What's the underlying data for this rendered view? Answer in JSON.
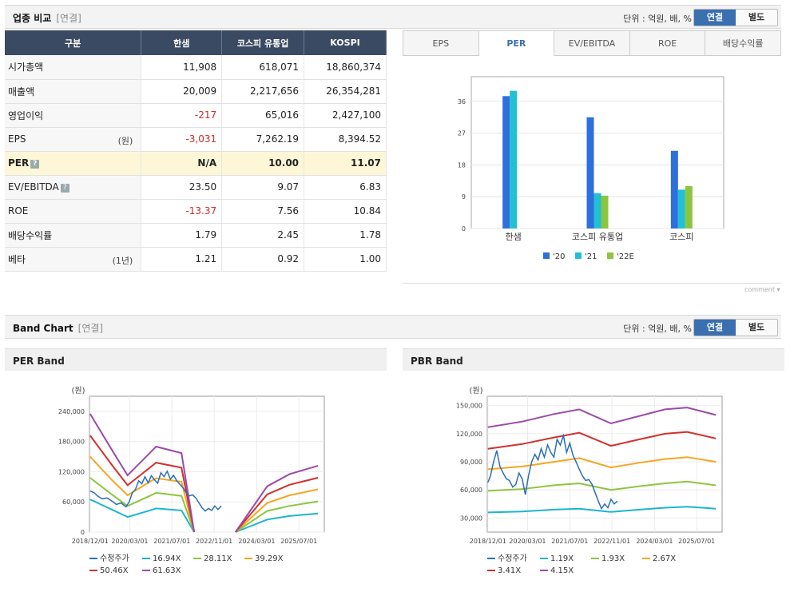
{
  "top": {
    "title": "업종 비교",
    "subtitle": "[연결]",
    "unit": "단위 : 억원, 배, %",
    "toggle_on": "연결",
    "toggle_off": "별도"
  },
  "table": {
    "headers": [
      "구분",
      "한샘",
      "코스피 유통업",
      "KOSPI"
    ],
    "rows": [
      {
        "label": "시가총액",
        "extra": "",
        "v": [
          "11,908",
          "618,071",
          "18,860,374"
        ],
        "neg": [
          false,
          false,
          false
        ]
      },
      {
        "label": "매출액",
        "extra": "",
        "v": [
          "20,009",
          "2,217,656",
          "26,354,281"
        ],
        "neg": [
          false,
          false,
          false
        ]
      },
      {
        "label": "영업이익",
        "extra": "",
        "v": [
          "-217",
          "65,016",
          "2,427,100"
        ],
        "neg": [
          true,
          false,
          false
        ]
      },
      {
        "label": "EPS",
        "extra": "(원)",
        "v": [
          "-3,031",
          "7,262.19",
          "8,394.52"
        ],
        "neg": [
          true,
          false,
          false
        ]
      },
      {
        "label": "PER",
        "extra": "",
        "q": true,
        "hl": true,
        "v": [
          "N/A",
          "10.00",
          "11.07"
        ],
        "neg": [
          false,
          false,
          false
        ]
      },
      {
        "label": "EV/EBITDA",
        "extra": "",
        "q": true,
        "v": [
          "23.50",
          "9.07",
          "6.83"
        ],
        "neg": [
          false,
          false,
          false
        ]
      },
      {
        "label": "ROE",
        "extra": "",
        "v": [
          "-13.37",
          "7.56",
          "10.84"
        ],
        "neg": [
          true,
          false,
          false
        ]
      },
      {
        "label": "배당수익률",
        "extra": "",
        "v": [
          "1.79",
          "2.45",
          "1.78"
        ],
        "neg": [
          false,
          false,
          false
        ]
      },
      {
        "label": "베타",
        "extra": "(1년)",
        "v": [
          "1.21",
          "0.92",
          "1.00"
        ],
        "neg": [
          false,
          false,
          false
        ]
      }
    ]
  },
  "tabs": [
    "EPS",
    "PER",
    "EV/EBITDA",
    "ROE",
    "배당수익률"
  ],
  "active_tab": "PER",
  "comment": "comment",
  "band": {
    "title": "Band Chart",
    "subtitle": "[연결]",
    "unit": "단위 : 억원, 배, %",
    "toggle_on": "연결",
    "toggle_off": "별도"
  },
  "chart_data": [
    {
      "type": "bar",
      "categories": [
        "한샘",
        "코스피 유통업",
        "코스피"
      ],
      "series": [
        {
          "name": "'20",
          "color": "#2e6fdc",
          "values": [
            37.5,
            31.5,
            22.0
          ]
        },
        {
          "name": "'21",
          "color": "#21c0d4",
          "values": [
            39.0,
            10.0,
            11.0
          ]
        },
        {
          "name": "'22E",
          "color": "#8cc63f",
          "values": [
            null,
            9.3,
            12.0
          ]
        }
      ],
      "yticks": [
        0,
        9,
        18,
        27,
        36
      ],
      "ylim": [
        0,
        43
      ]
    },
    {
      "type": "line",
      "title": "PER Band",
      "ylabel": "(원)",
      "xticks": [
        "2018/12/01",
        "2020/03/01",
        "2021/07/01",
        "2022/11/01",
        "2024/03/01",
        "2025/07/01"
      ],
      "yticks": [
        "0",
        "60,000",
        "120,000",
        "180,000",
        "240,000"
      ],
      "ylim": [
        0,
        270000
      ],
      "xlim": [
        2018.9,
        2026.3
      ],
      "legend": [
        {
          "name": "수정주가",
          "color": "#2a6fb5"
        },
        {
          "name": "16.94X",
          "color": "#1cb5cf"
        },
        {
          "name": "28.11X",
          "color": "#8cc63f"
        },
        {
          "name": "39.29X",
          "color": "#f5a623"
        },
        {
          "name": "50.46X",
          "color": "#d0312d"
        },
        {
          "name": "61.63X",
          "color": "#9b4aa8"
        }
      ],
      "bands": [
        {
          "color": "#1cb5cf",
          "pts": [
            [
              2018.92,
              65000
            ],
            [
              2019.6,
              45000
            ],
            [
              2020.1,
              30000
            ],
            [
              2020.8,
              43000
            ],
            [
              2021.0,
              47000
            ],
            [
              2021.8,
              43000
            ],
            [
              2022.2,
              0
            ]
          ],
          "pts2": [
            [
              2023.5,
              0
            ],
            [
              2024.5,
              25000
            ],
            [
              2025.2,
              32000
            ],
            [
              2026.1,
              37000
            ]
          ]
        },
        {
          "color": "#8cc63f",
          "pts": [
            [
              2018.92,
              108000
            ],
            [
              2019.6,
              75000
            ],
            [
              2020.1,
              52000
            ],
            [
              2020.8,
              72000
            ],
            [
              2021.0,
              78000
            ],
            [
              2021.8,
              72000
            ],
            [
              2022.2,
              0
            ]
          ],
          "pts2": [
            [
              2023.5,
              0
            ],
            [
              2024.5,
              42000
            ],
            [
              2025.2,
              52000
            ],
            [
              2026.1,
              61000
            ]
          ]
        },
        {
          "color": "#f5a623",
          "pts": [
            [
              2018.92,
              150000
            ],
            [
              2019.6,
              104000
            ],
            [
              2020.1,
              73000
            ],
            [
              2020.8,
              100000
            ],
            [
              2021.0,
              107000
            ],
            [
              2021.8,
              100000
            ],
            [
              2022.2,
              0
            ]
          ],
          "pts2": [
            [
              2023.5,
              0
            ],
            [
              2024.5,
              58000
            ],
            [
              2025.2,
              73000
            ],
            [
              2026.1,
              85000
            ]
          ]
        },
        {
          "color": "#d0312d",
          "pts": [
            [
              2018.92,
              192000
            ],
            [
              2019.6,
              134000
            ],
            [
              2020.1,
              93000
            ],
            [
              2020.8,
              128000
            ],
            [
              2021.0,
              138000
            ],
            [
              2021.8,
              128000
            ],
            [
              2022.2,
              0
            ]
          ],
          "pts2": [
            [
              2023.5,
              0
            ],
            [
              2024.5,
              75000
            ],
            [
              2025.2,
              94000
            ],
            [
              2026.1,
              108000
            ]
          ]
        },
        {
          "color": "#9b4aa8",
          "pts": [
            [
              2018.92,
              235000
            ],
            [
              2019.6,
              164000
            ],
            [
              2020.1,
              113000
            ],
            [
              2020.8,
              157000
            ],
            [
              2021.0,
              170000
            ],
            [
              2021.8,
              157000
            ],
            [
              2022.2,
              0
            ]
          ],
          "pts2": [
            [
              2023.5,
              0
            ],
            [
              2024.5,
              91000
            ],
            [
              2025.2,
              115000
            ],
            [
              2026.1,
              132000
            ]
          ]
        }
      ],
      "price": [
        [
          2018.92,
          82000
        ],
        [
          2019.05,
          78000
        ],
        [
          2019.15,
          72000
        ],
        [
          2019.3,
          66000
        ],
        [
          2019.45,
          68000
        ],
        [
          2019.6,
          62000
        ],
        [
          2019.75,
          55000
        ],
        [
          2019.9,
          58000
        ],
        [
          2020.05,
          50000
        ],
        [
          2020.15,
          60000
        ],
        [
          2020.25,
          78000
        ],
        [
          2020.35,
          85000
        ],
        [
          2020.45,
          102000
        ],
        [
          2020.55,
          96000
        ],
        [
          2020.65,
          110000
        ],
        [
          2020.75,
          98000
        ],
        [
          2020.85,
          112000
        ],
        [
          2020.95,
          104000
        ],
        [
          2021.05,
          97000
        ],
        [
          2021.15,
          118000
        ],
        [
          2021.25,
          110000
        ],
        [
          2021.35,
          121000
        ],
        [
          2021.45,
          105000
        ],
        [
          2021.55,
          113000
        ],
        [
          2021.65,
          102000
        ],
        [
          2021.75,
          95000
        ],
        [
          2021.85,
          88000
        ],
        [
          2021.95,
          78000
        ],
        [
          2022.05,
          72000
        ],
        [
          2022.15,
          74000
        ],
        [
          2022.25,
          68000
        ],
        [
          2022.35,
          58000
        ],
        [
          2022.45,
          48000
        ],
        [
          2022.55,
          42000
        ],
        [
          2022.65,
          47000
        ],
        [
          2022.75,
          43000
        ],
        [
          2022.85,
          52000
        ],
        [
          2022.95,
          45000
        ],
        [
          2023.05,
          52000
        ]
      ]
    },
    {
      "type": "line",
      "title": "PBR Band",
      "ylabel": "(원)",
      "xticks": [
        "2018/12/01",
        "2020/03/01",
        "2021/07/01",
        "2022/11/01",
        "2024/03/01",
        "2025/07/01"
      ],
      "yticks": [
        "30,000",
        "60,000",
        "90,000",
        "120,000",
        "150,000"
      ],
      "ylim": [
        15000,
        160000
      ],
      "xlim": [
        2018.9,
        2026.3
      ],
      "legend": [
        {
          "name": "수정주가",
          "color": "#2a6fb5"
        },
        {
          "name": "1.19X",
          "color": "#1cb5cf"
        },
        {
          "name": "1.93X",
          "color": "#8cc63f"
        },
        {
          "name": "2.67X",
          "color": "#f5a623"
        },
        {
          "name": "3.41X",
          "color": "#d0312d"
        },
        {
          "name": "4.15X",
          "color": "#9b4aa8"
        }
      ],
      "bands": [
        {
          "color": "#1cb5cf",
          "pts": [
            [
              2018.92,
              36000
            ],
            [
              2020.0,
              37000
            ],
            [
              2021.0,
              39000
            ],
            [
              2021.8,
              40000
            ],
            [
              2022.8,
              36500
            ],
            [
              2023.7,
              39000
            ],
            [
              2024.5,
              41000
            ],
            [
              2025.2,
              42000
            ],
            [
              2026.1,
              40000
            ]
          ]
        },
        {
          "color": "#8cc63f",
          "pts": [
            [
              2018.92,
              59000
            ],
            [
              2020.0,
              61000
            ],
            [
              2021.0,
              65000
            ],
            [
              2021.8,
              67000
            ],
            [
              2022.8,
              60000
            ],
            [
              2023.7,
              64000
            ],
            [
              2024.5,
              67000
            ],
            [
              2025.2,
              69000
            ],
            [
              2026.1,
              65000
            ]
          ]
        },
        {
          "color": "#f5a623",
          "pts": [
            [
              2018.92,
              82000
            ],
            [
              2020.0,
              85000
            ],
            [
              2021.0,
              90000
            ],
            [
              2021.8,
              94000
            ],
            [
              2022.8,
              84000
            ],
            [
              2023.7,
              89000
            ],
            [
              2024.5,
              93000
            ],
            [
              2025.2,
              95000
            ],
            [
              2026.1,
              90000
            ]
          ]
        },
        {
          "color": "#d0312d",
          "pts": [
            [
              2018.92,
              104000
            ],
            [
              2020.0,
              109000
            ],
            [
              2021.0,
              116000
            ],
            [
              2021.8,
              121000
            ],
            [
              2022.8,
              107000
            ],
            [
              2023.7,
              114000
            ],
            [
              2024.5,
              120000
            ],
            [
              2025.2,
              122000
            ],
            [
              2026.1,
              115000
            ]
          ]
        },
        {
          "color": "#9b4aa8",
          "pts": [
            [
              2018.92,
              127000
            ],
            [
              2020.0,
              133000
            ],
            [
              2021.0,
              141000
            ],
            [
              2021.8,
              146000
            ],
            [
              2022.8,
              131000
            ],
            [
              2023.7,
              139000
            ],
            [
              2024.5,
              146000
            ],
            [
              2025.2,
              148000
            ],
            [
              2026.1,
              140000
            ]
          ]
        }
      ],
      "price": [
        [
          2018.92,
          68000
        ],
        [
          2019.0,
          75000
        ],
        [
          2019.1,
          90000
        ],
        [
          2019.2,
          102000
        ],
        [
          2019.3,
          85000
        ],
        [
          2019.4,
          78000
        ],
        [
          2019.5,
          72000
        ],
        [
          2019.6,
          70000
        ],
        [
          2019.7,
          63000
        ],
        [
          2019.8,
          66000
        ],
        [
          2019.9,
          78000
        ],
        [
          2020.0,
          72000
        ],
        [
          2020.1,
          55000
        ],
        [
          2020.2,
          75000
        ],
        [
          2020.3,
          90000
        ],
        [
          2020.4,
          98000
        ],
        [
          2020.5,
          92000
        ],
        [
          2020.6,
          104000
        ],
        [
          2020.7,
          95000
        ],
        [
          2020.8,
          108000
        ],
        [
          2020.9,
          100000
        ],
        [
          2021.0,
          95000
        ],
        [
          2021.1,
          114000
        ],
        [
          2021.2,
          108000
        ],
        [
          2021.3,
          118000
        ],
        [
          2021.4,
          100000
        ],
        [
          2021.5,
          110000
        ],
        [
          2021.6,
          97000
        ],
        [
          2021.7,
          90000
        ],
        [
          2021.8,
          82000
        ],
        [
          2021.9,
          75000
        ],
        [
          2022.0,
          70000
        ],
        [
          2022.1,
          71000
        ],
        [
          2022.2,
          66000
        ],
        [
          2022.3,
          57000
        ],
        [
          2022.4,
          48000
        ],
        [
          2022.5,
          40000
        ],
        [
          2022.6,
          45000
        ],
        [
          2022.7,
          41000
        ],
        [
          2022.8,
          50000
        ],
        [
          2022.9,
          45000
        ],
        [
          2023.0,
          48000
        ]
      ]
    }
  ]
}
